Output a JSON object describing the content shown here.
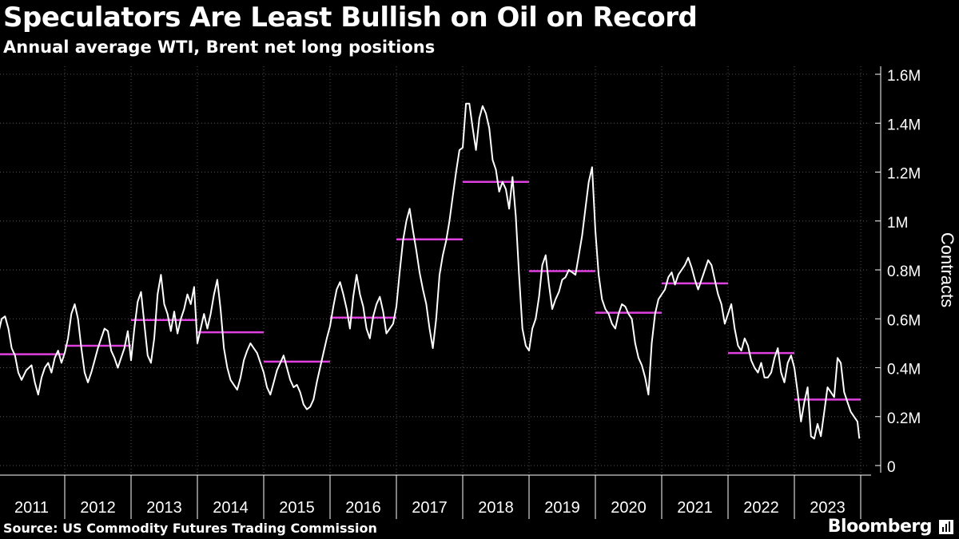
{
  "header": {
    "title": "Speculators Are Least Bullish on Oil on Record",
    "subtitle": "Annual average WTI, Brent net long positions"
  },
  "footer": {
    "source": "Source: US Commodity Futures Trading Commission",
    "brand": "Bloomberg",
    "brand_icon": "bloomberg-terminal-icon"
  },
  "colors": {
    "background": "#000000",
    "line": "#ffffff",
    "annual_average": "#e040e0",
    "gridline": "#555555"
  },
  "chart_data": {
    "type": "line",
    "ylabel": "Contracts",
    "ylim": [
      0,
      1600000
    ],
    "yticks": [
      {
        "value": 0,
        "label": "0"
      },
      {
        "value": 200000,
        "label": "0.2M"
      },
      {
        "value": 400000,
        "label": "0.4M"
      },
      {
        "value": 600000,
        "label": "0.6M"
      },
      {
        "value": 800000,
        "label": "0.8M"
      },
      {
        "value": 1000000,
        "label": "1M"
      },
      {
        "value": 1200000,
        "label": "1.2M"
      },
      {
        "value": 1400000,
        "label": "1.4M"
      },
      {
        "value": 1600000,
        "label": "1.6M"
      }
    ],
    "xlim": [
      2011,
      2024
    ],
    "xticks": [
      "2011",
      "2012",
      "2013",
      "2014",
      "2015",
      "2016",
      "2017",
      "2018",
      "2019",
      "2020",
      "2021",
      "2022",
      "2023"
    ],
    "grid": true,
    "series": [
      {
        "role": "weekly",
        "x": [
          2011.0,
          2011.05,
          2011.1,
          2011.15,
          2011.2,
          2011.25,
          2011.3,
          2011.35,
          2011.42,
          2011.5,
          2011.55,
          2011.6,
          2011.65,
          2011.7,
          2011.75,
          2011.8,
          2011.85,
          2011.9,
          2011.95,
          2012.0,
          2012.05,
          2012.1,
          2012.15,
          2012.2,
          2012.25,
          2012.3,
          2012.35,
          2012.4,
          2012.45,
          2012.5,
          2012.55,
          2012.6,
          2012.65,
          2012.7,
          2012.75,
          2012.8,
          2012.85,
          2012.9,
          2012.95,
          2013.0,
          2013.05,
          2013.1,
          2013.15,
          2013.2,
          2013.25,
          2013.3,
          2013.35,
          2013.4,
          2013.45,
          2013.5,
          2013.55,
          2013.6,
          2013.65,
          2013.7,
          2013.75,
          2013.8,
          2013.85,
          2013.9,
          2013.95,
          2014.0,
          2014.05,
          2014.1,
          2014.15,
          2014.2,
          2014.25,
          2014.3,
          2014.35,
          2014.4,
          2014.45,
          2014.5,
          2014.55,
          2014.6,
          2014.65,
          2014.7,
          2014.75,
          2014.8,
          2014.85,
          2014.9,
          2014.95,
          2015.0,
          2015.05,
          2015.1,
          2015.15,
          2015.2,
          2015.25,
          2015.3,
          2015.35,
          2015.4,
          2015.45,
          2015.5,
          2015.55,
          2015.6,
          2015.65,
          2015.7,
          2015.75,
          2015.8,
          2015.85,
          2015.9,
          2015.95,
          2016.0,
          2016.05,
          2016.1,
          2016.15,
          2016.2,
          2016.25,
          2016.3,
          2016.35,
          2016.4,
          2016.45,
          2016.5,
          2016.55,
          2016.6,
          2016.65,
          2016.7,
          2016.75,
          2016.8,
          2016.85,
          2016.9,
          2016.95,
          2017.0,
          2017.05,
          2017.1,
          2017.15,
          2017.2,
          2017.25,
          2017.3,
          2017.35,
          2017.4,
          2017.45,
          2017.5,
          2017.55,
          2017.6,
          2017.65,
          2017.7,
          2017.75,
          2017.8,
          2017.85,
          2017.9,
          2017.95,
          2018.0,
          2018.05,
          2018.1,
          2018.15,
          2018.2,
          2018.25,
          2018.3,
          2018.35,
          2018.4,
          2018.45,
          2018.5,
          2018.55,
          2018.6,
          2018.65,
          2018.7,
          2018.75,
          2018.8,
          2018.85,
          2018.9,
          2018.95,
          2019.0,
          2019.05,
          2019.1,
          2019.15,
          2019.2,
          2019.25,
          2019.3,
          2019.35,
          2019.4,
          2019.45,
          2019.5,
          2019.55,
          2019.6,
          2019.65,
          2019.7,
          2019.75,
          2019.8,
          2019.85,
          2019.9,
          2019.95,
          2020.0,
          2020.05,
          2020.1,
          2020.15,
          2020.2,
          2020.25,
          2020.3,
          2020.35,
          2020.4,
          2020.45,
          2020.5,
          2020.55,
          2020.6,
          2020.65,
          2020.7,
          2020.75,
          2020.8,
          2020.85,
          2020.9,
          2020.95,
          2021.0,
          2021.05,
          2021.1,
          2021.15,
          2021.2,
          2021.25,
          2021.3,
          2021.35,
          2021.4,
          2021.45,
          2021.5,
          2021.55,
          2021.6,
          2021.65,
          2021.7,
          2021.75,
          2021.8,
          2021.85,
          2021.9,
          2021.95,
          2022.0,
          2022.05,
          2022.1,
          2022.15,
          2022.2,
          2022.25,
          2022.3,
          2022.35,
          2022.4,
          2022.45,
          2022.5,
          2022.55,
          2022.6,
          2022.65,
          2022.7,
          2022.75,
          2022.8,
          2022.85,
          2022.9,
          2022.95,
          2023.0,
          2023.05,
          2023.1,
          2023.15,
          2023.2,
          2023.25,
          2023.3,
          2023.35,
          2023.4,
          2023.45,
          2023.5,
          2023.55,
          2023.6,
          2023.65,
          2023.7,
          2023.75,
          2023.8,
          2023.85,
          2023.9,
          2023.95,
          2023.98
        ],
        "y": [
          540000,
          600000,
          610000,
          560000,
          480000,
          450000,
          380000,
          350000,
          390000,
          410000,
          340000,
          290000,
          360000,
          400000,
          420000,
          380000,
          440000,
          470000,
          420000,
          460000,
          520000,
          620000,
          660000,
          600000,
          480000,
          380000,
          340000,
          380000,
          430000,
          480000,
          520000,
          560000,
          550000,
          470000,
          440000,
          400000,
          440000,
          480000,
          550000,
          430000,
          560000,
          670000,
          710000,
          580000,
          450000,
          420000,
          520000,
          700000,
          780000,
          660000,
          620000,
          550000,
          630000,
          540000,
          600000,
          640000,
          700000,
          660000,
          730000,
          500000,
          560000,
          620000,
          560000,
          620000,
          700000,
          760000,
          640000,
          480000,
          400000,
          350000,
          330000,
          310000,
          360000,
          430000,
          470000,
          500000,
          480000,
          460000,
          420000,
          380000,
          320000,
          290000,
          340000,
          390000,
          420000,
          450000,
          400000,
          350000,
          320000,
          330000,
          300000,
          250000,
          230000,
          240000,
          270000,
          340000,
          400000,
          460000,
          520000,
          570000,
          650000,
          720000,
          750000,
          700000,
          640000,
          560000,
          690000,
          780000,
          700000,
          650000,
          560000,
          520000,
          610000,
          660000,
          690000,
          630000,
          540000,
          560000,
          580000,
          650000,
          790000,
          920000,
          1000000,
          1050000,
          960000,
          880000,
          790000,
          720000,
          660000,
          560000,
          480000,
          600000,
          780000,
          860000,
          920000,
          1000000,
          1100000,
          1200000,
          1290000,
          1300000,
          1480000,
          1480000,
          1380000,
          1290000,
          1420000,
          1470000,
          1440000,
          1380000,
          1250000,
          1210000,
          1120000,
          1160000,
          1130000,
          1050000,
          1180000,
          1020000,
          780000,
          560000,
          490000,
          470000,
          560000,
          600000,
          690000,
          820000,
          860000,
          740000,
          640000,
          680000,
          710000,
          760000,
          770000,
          800000,
          790000,
          780000,
          860000,
          940000,
          1050000,
          1160000,
          1220000,
          960000,
          780000,
          680000,
          640000,
          620000,
          580000,
          560000,
          620000,
          660000,
          650000,
          620000,
          600000,
          500000,
          440000,
          410000,
          360000,
          290000,
          500000,
          620000,
          680000,
          700000,
          720000,
          770000,
          790000,
          740000,
          780000,
          800000,
          820000,
          850000,
          810000,
          760000,
          720000,
          760000,
          800000,
          840000,
          820000,
          760000,
          700000,
          660000,
          580000,
          620000,
          660000,
          560000,
          490000,
          470000,
          520000,
          490000,
          430000,
          400000,
          380000,
          420000,
          360000,
          360000,
          380000,
          440000,
          480000,
          380000,
          340000,
          420000,
          450000,
          400000,
          300000,
          180000,
          260000,
          320000,
          120000,
          110000,
          170000,
          120000,
          220000,
          320000,
          300000,
          280000,
          440000,
          420000,
          300000,
          260000,
          220000,
          200000,
          180000,
          110000
        ]
      },
      {
        "role": "annual_average",
        "segments": [
          {
            "year": "2011",
            "value": 455000
          },
          {
            "year": "2012",
            "value": 490000
          },
          {
            "year": "2013",
            "value": 595000
          },
          {
            "year": "2014",
            "value": 545000
          },
          {
            "year": "2015",
            "value": 425000
          },
          {
            "year": "2016",
            "value": 605000
          },
          {
            "year": "2017",
            "value": 925000
          },
          {
            "year": "2018",
            "value": 1160000
          },
          {
            "year": "2019",
            "value": 795000
          },
          {
            "year": "2020",
            "value": 625000
          },
          {
            "year": "2021",
            "value": 745000
          },
          {
            "year": "2022",
            "value": 460000
          },
          {
            "year": "2023",
            "value": 270000
          }
        ]
      }
    ]
  }
}
